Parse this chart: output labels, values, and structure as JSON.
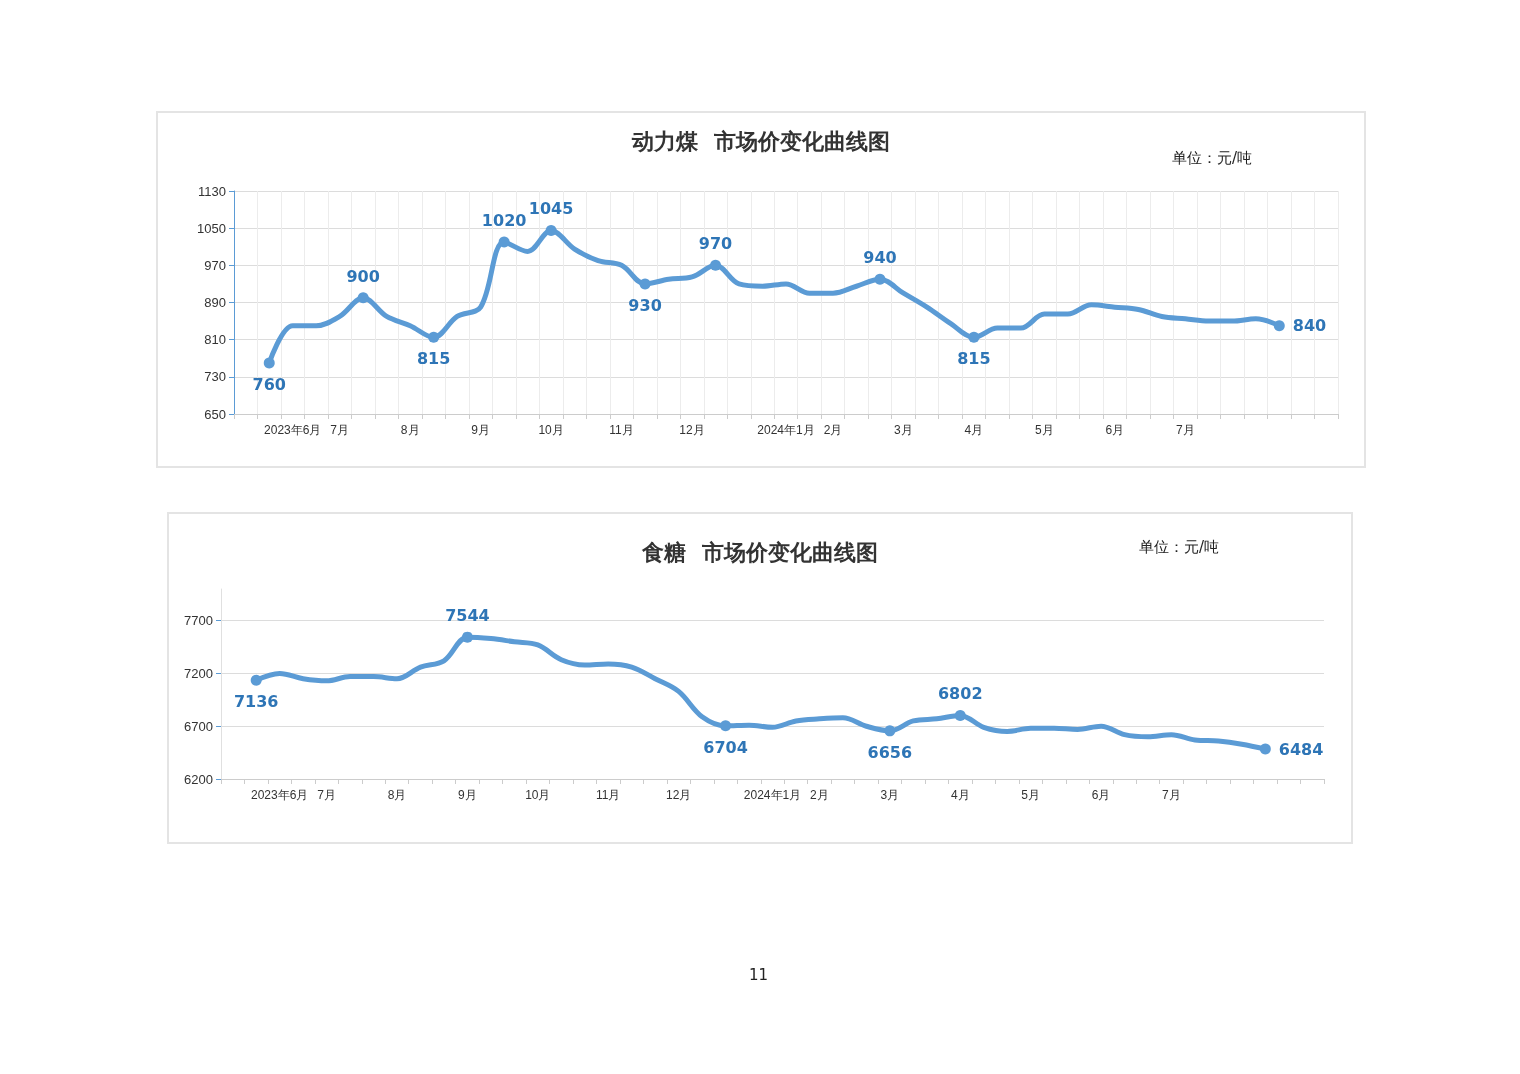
{
  "chart_data": [
    {
      "type": "line",
      "title": "动力煤  市场价变化曲线图",
      "annotations": [
        "单位：元/吨"
      ],
      "categories": [
        null,
        null,
        "2023年6月",
        null,
        "7月",
        null,
        null,
        "8月",
        null,
        null,
        "9月",
        null,
        null,
        "10月",
        null,
        null,
        "11月",
        null,
        null,
        "12月",
        null,
        null,
        null,
        "2024年1月",
        null,
        "2月",
        null,
        null,
        "3月",
        null,
        null,
        "4月",
        null,
        null,
        "5月",
        null,
        null,
        "6月",
        null,
        null,
        "7月",
        null,
        null,
        null,
        null,
        null,
        null
      ],
      "series": [
        {
          "color": "#5b9bd5",
          "values": [
            null,
            760,
            840,
            840,
            860,
            900,
            860,
            840,
            815,
            860,
            880,
            1020,
            1000,
            1045,
            1005,
            980,
            970,
            930,
            940,
            945,
            970,
            930,
            925,
            930,
            910,
            910,
            925,
            940,
            910,
            880,
            845,
            815,
            835,
            835,
            865,
            865,
            885,
            880,
            875,
            860,
            855,
            850,
            850,
            855,
            840,
            null,
            null
          ],
          "value_labels": [
            null,
            "760",
            null,
            null,
            null,
            "900",
            null,
            null,
            "815",
            null,
            null,
            "1020",
            null,
            "1045",
            null,
            null,
            null,
            "930",
            null,
            null,
            "970",
            null,
            null,
            null,
            null,
            null,
            null,
            "940",
            null,
            null,
            null,
            "815",
            null,
            null,
            null,
            null,
            null,
            null,
            null,
            null,
            null,
            null,
            null,
            null,
            "840",
            null,
            null
          ]
        }
      ],
      "ylim": [
        650,
        1130
      ],
      "yticks": [
        650,
        730,
        810,
        890,
        970,
        1050,
        1130
      ],
      "grid": true
    },
    {
      "type": "line",
      "title": "食糖  市场价变化曲线图",
      "annotations": [
        "单位：元/吨",
        "11"
      ],
      "categories": [
        null,
        null,
        "2023年6月",
        null,
        "7月",
        null,
        null,
        "8月",
        null,
        null,
        "9月",
        null,
        null,
        "10月",
        null,
        null,
        "11月",
        null,
        null,
        "12月",
        null,
        null,
        null,
        "2024年1月",
        null,
        "2月",
        null,
        null,
        "3月",
        null,
        null,
        "4月",
        null,
        null,
        "5月",
        null,
        null,
        "6月",
        null,
        null,
        "7月",
        null,
        null,
        null,
        null,
        null,
        null
      ],
      "series": [
        {
          "color": "#5b9bd5",
          "values": [
            null,
            7136,
            7200,
            7150,
            7130,
            7170,
            7170,
            7150,
            7260,
            7320,
            7544,
            7530,
            7500,
            7470,
            7330,
            7280,
            7290,
            7260,
            7150,
            7030,
            6790,
            6704,
            6710,
            6690,
            6750,
            6770,
            6780,
            6700,
            6656,
            6750,
            6770,
            6802,
            6690,
            6650,
            6680,
            6680,
            6670,
            6700,
            6620,
            6600,
            6620,
            6570,
            6560,
            6530,
            6484,
            null,
            null
          ],
          "value_labels": [
            null,
            "7136",
            null,
            null,
            null,
            null,
            null,
            null,
            null,
            null,
            "7544",
            null,
            null,
            null,
            null,
            null,
            null,
            null,
            null,
            null,
            null,
            "6704",
            null,
            null,
            null,
            null,
            null,
            null,
            "6656",
            null,
            null,
            "6802",
            null,
            null,
            null,
            null,
            null,
            null,
            null,
            null,
            null,
            null,
            null,
            null,
            "6484",
            null,
            null
          ]
        }
      ],
      "ylim": [
        6200,
        8000
      ],
      "yticks": [
        6200,
        6700,
        7200,
        7700
      ],
      "grid": "y"
    }
  ]
}
